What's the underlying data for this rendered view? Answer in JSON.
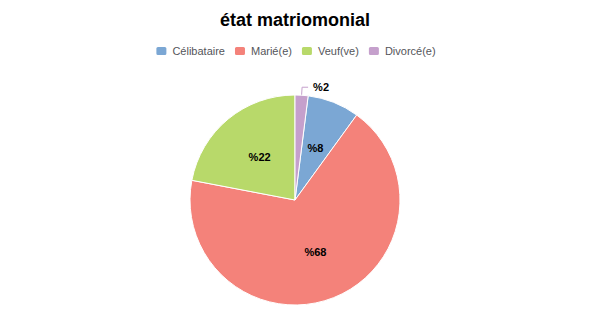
{
  "chart_data": {
    "type": "pie",
    "title": "état matriomonial",
    "categories": [
      "Célibataire",
      "Marié(e)",
      "Veuf(ve)",
      "Divorcé(e)"
    ],
    "values": [
      8,
      68,
      22,
      2
    ],
    "value_labels": [
      "%8",
      "%68",
      "%22",
      "%2"
    ],
    "colors": [
      "#7BA7D4",
      "#F4827A",
      "#B8D96A",
      "#C5A0CC"
    ],
    "data_labels": true,
    "legend": "top"
  }
}
